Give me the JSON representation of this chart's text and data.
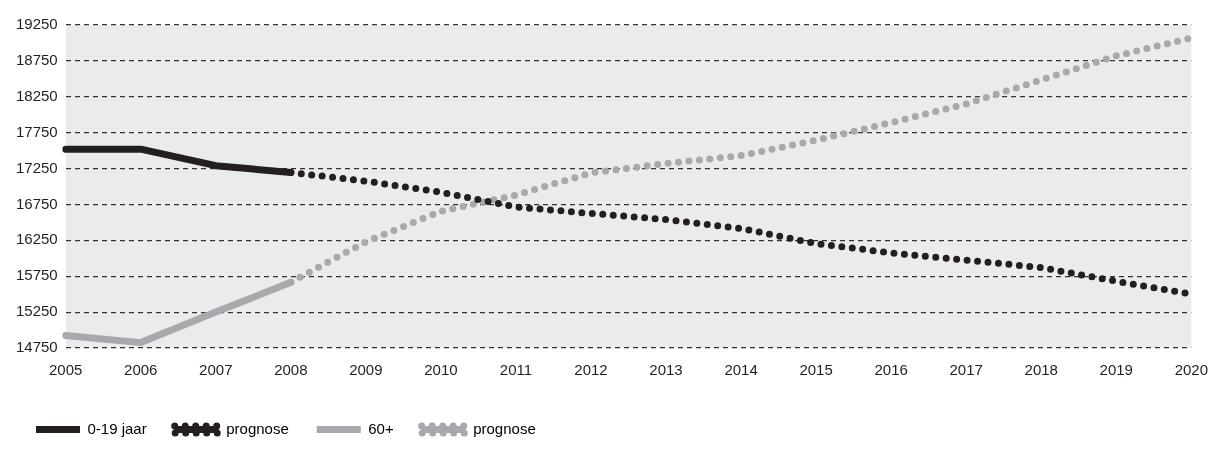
{
  "chart_data": {
    "type": "line",
    "categories": [
      "2005",
      "2006",
      "2007",
      "2008",
      "2009",
      "2010",
      "2011",
      "2012",
      "2013",
      "2014",
      "2015",
      "2016",
      "2017",
      "2018",
      "2019",
      "2020"
    ],
    "series": [
      {
        "name": "0-19 jaar",
        "color": "#231f20",
        "line_style": "solid",
        "values": [
          17520,
          17520,
          17290,
          17195,
          null,
          null,
          null,
          null,
          null,
          null,
          null,
          null,
          null,
          null,
          null,
          null
        ]
      },
      {
        "name": "prognose",
        "color": "#231f20",
        "line_style": "dotted",
        "values": [
          null,
          null,
          null,
          17195,
          17075,
          16920,
          16715,
          16625,
          16540,
          16415,
          16205,
          16075,
          15975,
          15870,
          15680,
          15500
        ]
      },
      {
        "name": "60+",
        "color": "#a7a9ac",
        "line_style": "solid",
        "values": [
          14925,
          14825,
          15250,
          15665,
          null,
          null,
          null,
          null,
          null,
          null,
          null,
          null,
          null,
          null,
          null,
          null
        ]
      },
      {
        "name": "prognose",
        "color": "#a7a9ac",
        "line_style": "dotted",
        "values": [
          null,
          null,
          null,
          15665,
          16230,
          16655,
          16880,
          17190,
          17320,
          17430,
          17645,
          17890,
          18150,
          18485,
          18820,
          19070
        ]
      }
    ],
    "ylim": [
      14750,
      19250
    ],
    "yticks": [
      14750,
      15250,
      15750,
      16250,
      16750,
      17250,
      17750,
      18250,
      18750,
      19250
    ],
    "grid": "y",
    "legend": "bottom",
    "marker": "none"
  }
}
